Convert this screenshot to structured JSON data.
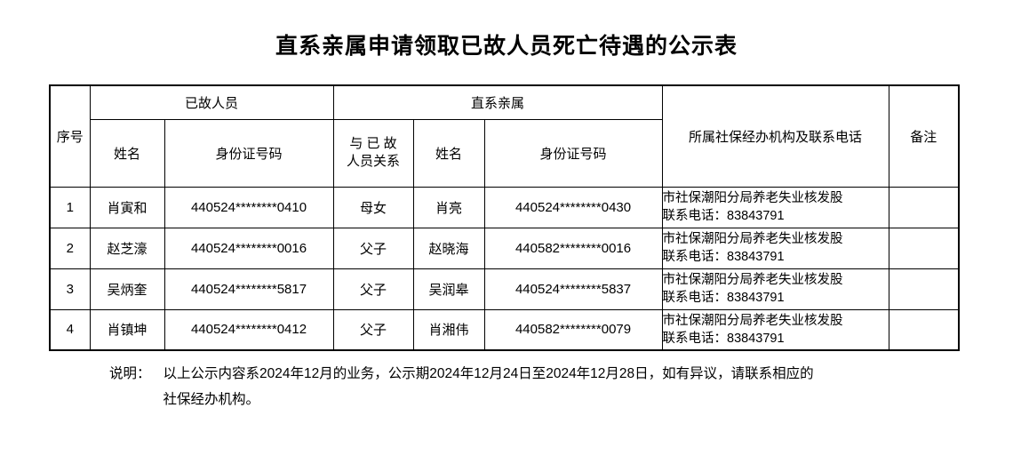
{
  "title": "直系亲属申请领取已故人员死亡待遇的公示表",
  "table": {
    "headers": {
      "seq": "序号",
      "deceased_group": "已故人员",
      "relative_group": "直系亲属",
      "name": "姓名",
      "id_number": "身份证号码",
      "relation_line1": "与 已 故",
      "relation_line2": "人员关系",
      "agency": "所属社保经办机构及联系电话",
      "remark": "备注"
    },
    "rows": [
      {
        "no": "1",
        "deceased_name": "肖寅和",
        "deceased_id": "440524********0410",
        "relation": "母女",
        "relative_name": "肖亮",
        "relative_id": "440524********0430",
        "agency_line1": "市社保潮阳分局养老失业核发股",
        "agency_line2": "联系电话：83843791",
        "remark": ""
      },
      {
        "no": "2",
        "deceased_name": "赵芝濠",
        "deceased_id": "440524********0016",
        "relation": "父子",
        "relative_name": "赵晓海",
        "relative_id": "440582********0016",
        "agency_line1": "市社保潮阳分局养老失业核发股",
        "agency_line2": "联系电话：83843791",
        "remark": ""
      },
      {
        "no": "3",
        "deceased_name": "吴炳奎",
        "deceased_id": "440524********5817",
        "relation": "父子",
        "relative_name": "吴润皋",
        "relative_id": "440524********5837",
        "agency_line1": "市社保潮阳分局养老失业核发股",
        "agency_line2": "联系电话：83843791",
        "remark": ""
      },
      {
        "no": "4",
        "deceased_name": "肖镇坤",
        "deceased_id": "440524********0412",
        "relation": "父子",
        "relative_name": "肖湘伟",
        "relative_id": "440582********0079",
        "agency_line1": "市社保潮阳分局养老失业核发股",
        "agency_line2": "联系电话：83843791",
        "remark": ""
      }
    ]
  },
  "note": {
    "label": "说明：",
    "line1": "以上公示内容系2024年12月的业务，公示期2024年12月24日至2024年12月28日，如有异议，请联系相应的",
    "line2": "社保经办机构。"
  }
}
